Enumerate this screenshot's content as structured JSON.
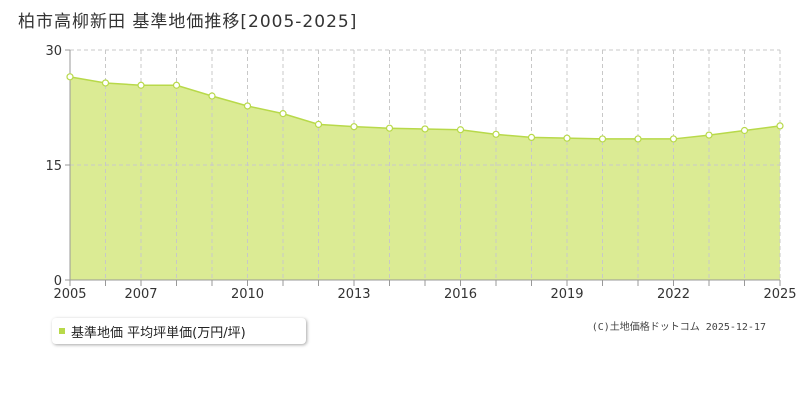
{
  "colors": {
    "fill": "#dbeb94",
    "line": "#b8d94a",
    "point_fill": "#ffffff",
    "grid": "#c8c8c8",
    "axis": "#999999",
    "legend_marker": "#b8d94a"
  },
  "chart_data": {
    "type": "area",
    "title": "柏市高柳新田 基準地価推移[2005-2025]",
    "x": [
      2005,
      2006,
      2007,
      2008,
      2009,
      2010,
      2011,
      2012,
      2013,
      2014,
      2015,
      2016,
      2017,
      2018,
      2019,
      2020,
      2021,
      2022,
      2023,
      2024,
      2025
    ],
    "x_tick_labels": [
      "2005",
      "2007",
      "2010",
      "2013",
      "2016",
      "2019",
      "2022",
      "2025"
    ],
    "y_tick_labels": [
      "0",
      "15",
      "30"
    ],
    "ylim": [
      0,
      30
    ],
    "xlim": [
      2005,
      2025
    ],
    "grid": true,
    "series": [
      {
        "name": "基準地価 平均坪単価(万円/坪)",
        "values": [
          26.5,
          25.7,
          25.4,
          25.4,
          24.0,
          22.7,
          21.7,
          20.3,
          20.0,
          19.8,
          19.7,
          19.6,
          19.0,
          18.6,
          18.5,
          18.4,
          18.4,
          18.4,
          18.9,
          19.5,
          20.1
        ]
      }
    ],
    "legend": {
      "position": "bottom-left",
      "label": "基準地価 平均坪単価(万円/坪)"
    }
  },
  "credit": "(C)土地価格ドットコム 2025-12-17"
}
